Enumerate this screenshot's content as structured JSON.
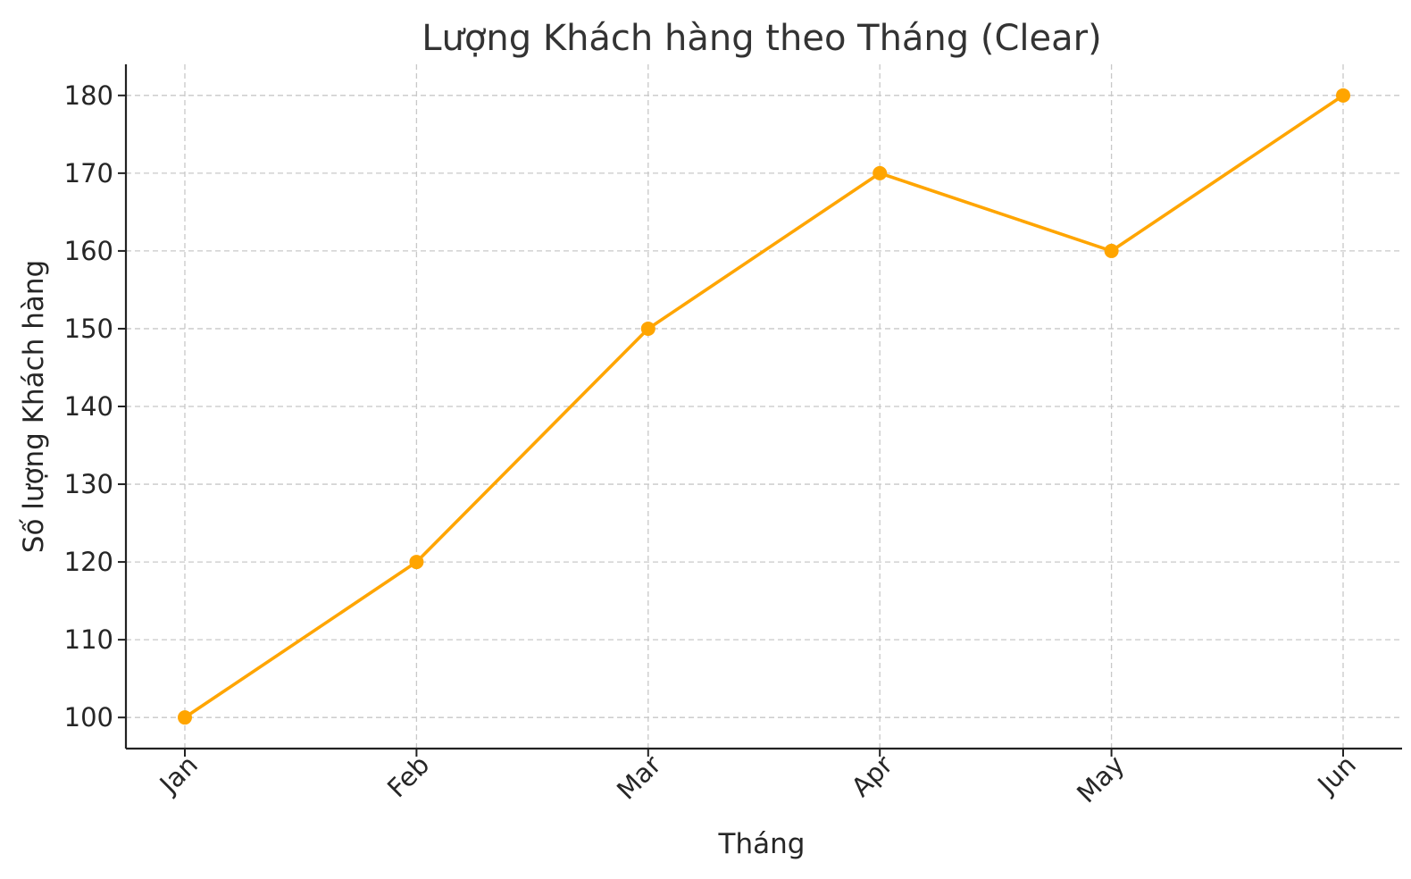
{
  "chart_data": {
    "type": "line",
    "title": "Lượng Khách hàng theo Tháng (Clear)",
    "xlabel": "Tháng",
    "ylabel": "Số lượng Khách hàng",
    "categories": [
      "Jan",
      "Feb",
      "Mar",
      "Apr",
      "May",
      "Jun"
    ],
    "series": [
      {
        "values": [
          100,
          120,
          150,
          170,
          160,
          180
        ],
        "color": "#FFA500",
        "marker": "circle"
      }
    ],
    "yticks": [
      "100",
      "110",
      "120",
      "130",
      "140",
      "150",
      "160",
      "170",
      "180"
    ],
    "ylim": [
      96,
      184
    ],
    "grid": true,
    "grid_style": "dashed",
    "xtick_rotation": "45 degrees"
  }
}
